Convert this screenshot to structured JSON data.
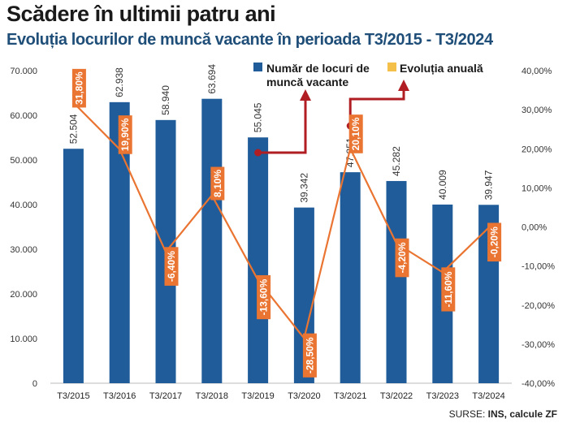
{
  "header": {
    "title": "Scădere în ultimii patru ani",
    "subtitle": "Evoluția locurilor de muncă vacante în perioada T3/2015 - T3/2024"
  },
  "source": {
    "prefix": "SURSE: ",
    "text": "INS, calcule ZF"
  },
  "colors": {
    "bar": "#1f5c99",
    "line": "#ea7431",
    "label_bg": "#ea7431",
    "arrow": "#b01e23",
    "legend_line": "#f5c04a"
  },
  "chart_data": {
    "type": "bar",
    "categories": [
      "T3/2015",
      "T3/2016",
      "T3/2017",
      "T3/2018",
      "T3/2019",
      "T3/2020",
      "T3/2021",
      "T3/2022",
      "T3/2023",
      "T3/2024"
    ],
    "series": [
      {
        "name": "Număr de locuri de muncă vacante",
        "type": "bar",
        "axis": "left",
        "values": [
          52504,
          62938,
          58940,
          63694,
          55045,
          39342,
          47251,
          45282,
          40009,
          39947
        ],
        "labels": [
          "52.504",
          "62.938",
          "58.940",
          "63.694",
          "55.045",
          "39.342",
          "47.251",
          "45.282",
          "40.009",
          "39.947"
        ]
      },
      {
        "name": "Evoluția anuală",
        "type": "line",
        "axis": "right",
        "values": [
          31.8,
          19.9,
          -6.4,
          8.1,
          -13.6,
          -28.5,
          20.1,
          -4.2,
          -11.6,
          -0.2
        ],
        "labels": [
          "31,80%",
          "19,90%",
          "-6,40%",
          "8,10%",
          "-13,60%",
          "-28,50%",
          "20,10%",
          "-4,20%",
          "-11,60%",
          "-0,20%"
        ]
      }
    ],
    "y_left": {
      "range": [
        0,
        70000
      ],
      "ticks": [
        "0",
        "10.000",
        "20.000",
        "30.000",
        "40.000",
        "50.000",
        "60.000",
        "70.000"
      ]
    },
    "y_right": {
      "range": [
        -40,
        40
      ],
      "ticks": [
        "-40,00%",
        "-30,00%",
        "-20,00%",
        "-10,00%",
        "0,00%",
        "10,00%",
        "20,00%",
        "30,00%",
        "40,00%"
      ]
    },
    "legend": {
      "bar_label_line1": "Număr de locuri de",
      "bar_label_line2": "muncă vacante",
      "line_label": "Evoluția anuală"
    },
    "grid": false
  }
}
